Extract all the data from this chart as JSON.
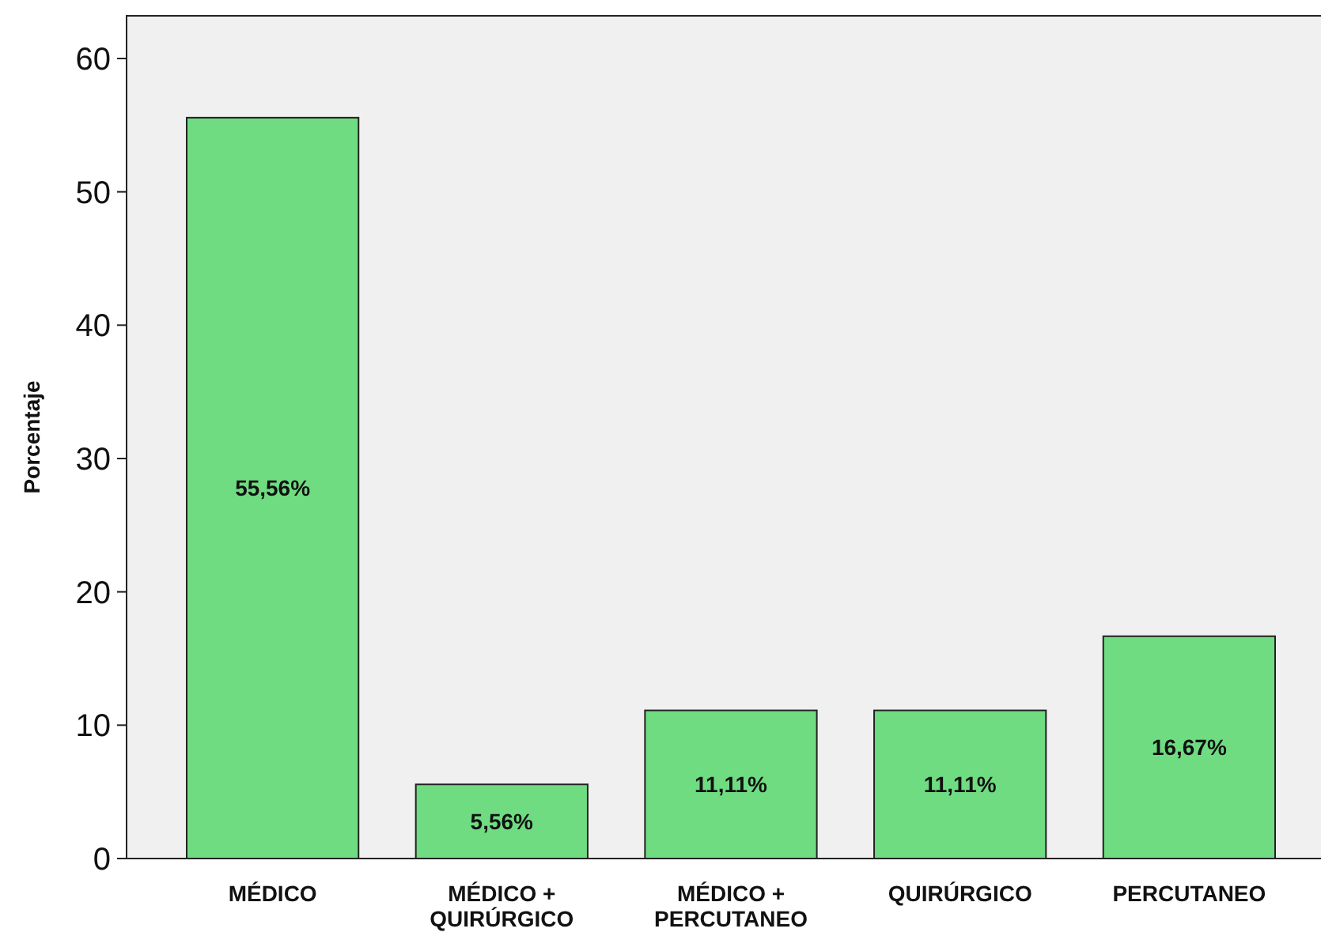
{
  "chart_data": {
    "type": "bar",
    "ylabel": "Porcentaje",
    "categories": [
      "MÉDICO",
      "MÉDICO + QUIRÚRGICO",
      "MÉDICO + PERCUTANEO",
      "QUIRÚRGICO",
      "PERCUTANEO"
    ],
    "values": [
      55.56,
      5.56,
      11.11,
      11.11,
      16.67
    ],
    "value_labels": [
      "55,56%",
      "5,56%",
      "11,11%",
      "11,11%",
      "16,67%"
    ],
    "color": "#6fdc82",
    "ylim": [
      0,
      63.2
    ],
    "yticks": [
      0,
      10,
      20,
      30,
      40,
      50,
      60
    ],
    "grid": false
  }
}
